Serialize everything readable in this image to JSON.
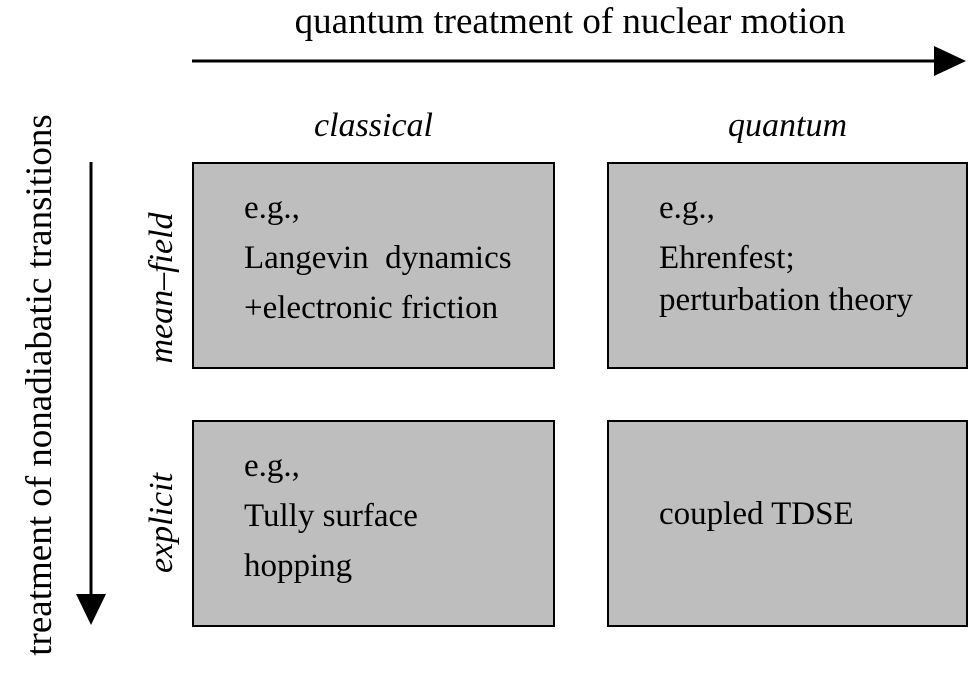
{
  "axes": {
    "horizontal_label": "quantum treatment of nuclear motion",
    "vertical_label": "treatment of nonadiabatic transitions"
  },
  "columns": [
    {
      "label": "classical"
    },
    {
      "label": "quantum"
    }
  ],
  "rows": [
    {
      "label": "mean–field"
    },
    {
      "label": "explicit"
    }
  ],
  "cells": [
    {
      "row": "mean–field",
      "column": "classical",
      "lines": [
        "e.g.,",
        "Langevin  dynamics",
        "+electronic friction"
      ]
    },
    {
      "row": "mean–field",
      "column": "quantum",
      "lines": [
        "e.g.,",
        "Ehrenfest;",
        "perturbation theory"
      ]
    },
    {
      "row": "explicit",
      "column": "classical",
      "lines": [
        "e.g.,",
        "Tully surface",
        "hopping"
      ]
    },
    {
      "row": "explicit",
      "column": "quantum",
      "lines": [
        "coupled TDSE"
      ]
    }
  ],
  "colors": {
    "cell_fill": "#bebebe",
    "border": "#000000",
    "arrow": "#000000"
  }
}
